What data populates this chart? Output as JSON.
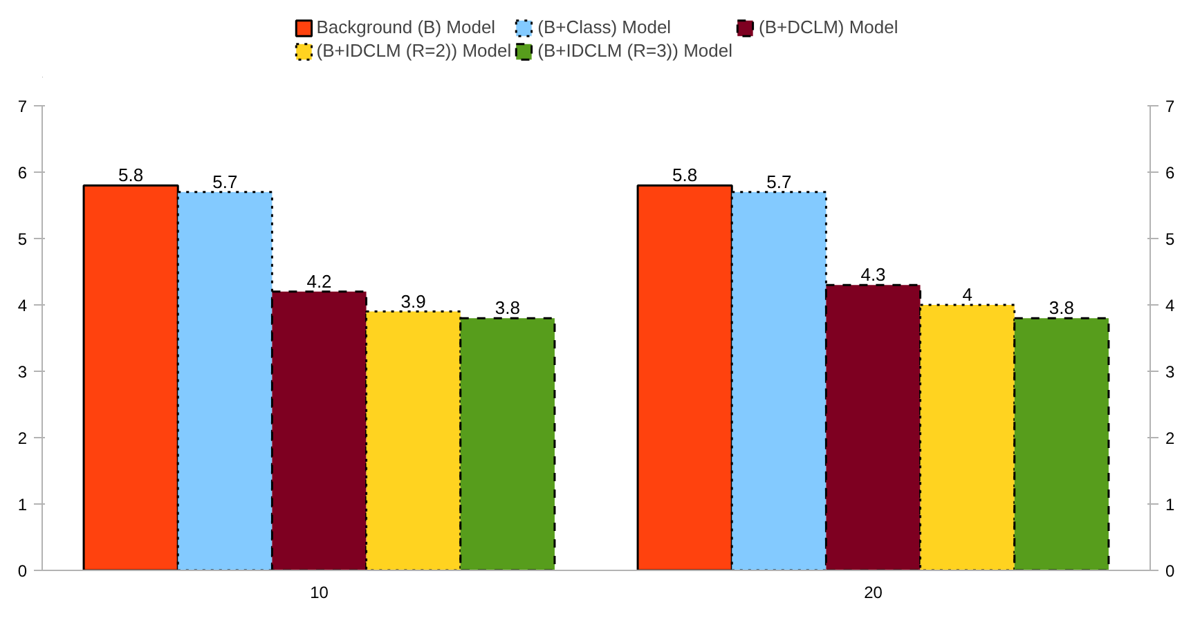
{
  "chart_data": {
    "type": "bar",
    "categories": [
      "10",
      "20"
    ],
    "series": [
      {
        "name": "Background (B) Model",
        "color": "#ff420e",
        "line_style": "solid",
        "values": [
          5.8,
          5.8
        ]
      },
      {
        "name": "(B+Class) Model",
        "color": "#83caff",
        "line_style": "dotted",
        "values": [
          5.7,
          5.7
        ]
      },
      {
        "name": "(B+DCLM) Model",
        "color": "#7e0021",
        "line_style": "dashed",
        "values": [
          4.2,
          4.3
        ]
      },
      {
        "name": "(B+IDCLM (R=2)) Model",
        "color": "#ffd320",
        "line_style": "dotted",
        "values": [
          3.9,
          4
        ]
      },
      {
        "name": "(B+IDCLM (R=3)) Model",
        "color": "#579d1c",
        "line_style": "dashed",
        "values": [
          3.8,
          3.8
        ]
      }
    ],
    "ylim": [
      0,
      7
    ],
    "yticks": [
      0,
      1,
      2,
      3,
      4,
      5,
      6,
      7
    ],
    "y2lim": [
      0,
      7
    ],
    "y2ticks": [
      0,
      1,
      2,
      3,
      4,
      5,
      6,
      7
    ],
    "data_labels": true,
    "grid": false,
    "legend": "top"
  }
}
